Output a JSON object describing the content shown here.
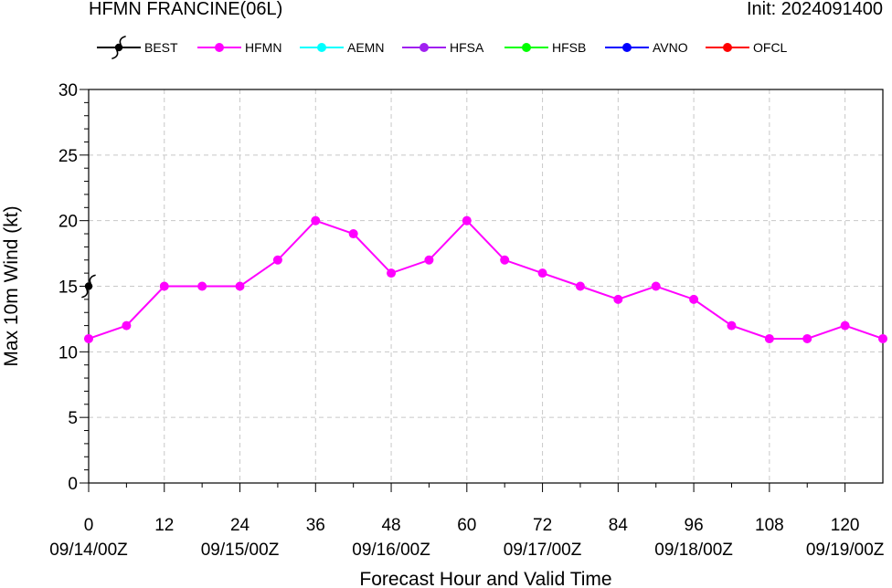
{
  "header": {
    "title": "HFMN FRANCINE(06L)",
    "init": "Init: 2024091400"
  },
  "legend": [
    {
      "label": "BEST",
      "color": "#000000",
      "marker": "hurricane-symbol"
    },
    {
      "label": "HFMN",
      "color": "#ff00ff",
      "marker": "circle"
    },
    {
      "label": "AEMN",
      "color": "#00ffff",
      "marker": "circle"
    },
    {
      "label": "HFSA",
      "color": "#a020f0",
      "marker": "circle"
    },
    {
      "label": "HFSB",
      "color": "#00ff00",
      "marker": "circle"
    },
    {
      "label": "AVNO",
      "color": "#0000ff",
      "marker": "circle"
    },
    {
      "label": "OFCL",
      "color": "#ff0000",
      "marker": "circle"
    }
  ],
  "chart_data": {
    "type": "line",
    "xlabel": "Forecast Hour and Valid Time",
    "ylabel": "Max 10m Wind (kt)",
    "xlim": [
      0,
      126
    ],
    "ylim": [
      0,
      30
    ],
    "x_ticks": [
      0,
      12,
      24,
      36,
      48,
      60,
      72,
      84,
      96,
      108,
      120
    ],
    "y_ticks": [
      0,
      5,
      10,
      15,
      20,
      25,
      30
    ],
    "valid_time_labels": [
      {
        "x": 0,
        "label": "09/14/00Z"
      },
      {
        "x": 24,
        "label": "09/15/00Z"
      },
      {
        "x": 48,
        "label": "09/16/00Z"
      },
      {
        "x": 72,
        "label": "09/17/00Z"
      },
      {
        "x": 96,
        "label": "09/18/00Z"
      },
      {
        "x": 120,
        "label": "09/19/00Z"
      }
    ],
    "grid": true,
    "legend_position": "top",
    "series": [
      {
        "name": "HFMN",
        "color": "#ff00ff",
        "x": [
          0,
          6,
          12,
          18,
          24,
          30,
          36,
          42,
          48,
          54,
          60,
          66,
          72,
          78,
          84,
          90,
          96,
          102,
          108,
          114,
          120,
          126
        ],
        "y": [
          11,
          12,
          15,
          15,
          15,
          17,
          20,
          19,
          16,
          17,
          20,
          17,
          16,
          15,
          14,
          15,
          14,
          12,
          11,
          11,
          12,
          11
        ]
      },
      {
        "name": "BEST",
        "color": "#000000",
        "marker": "hurricane-symbol",
        "x": [
          0
        ],
        "y": [
          15
        ]
      }
    ]
  }
}
